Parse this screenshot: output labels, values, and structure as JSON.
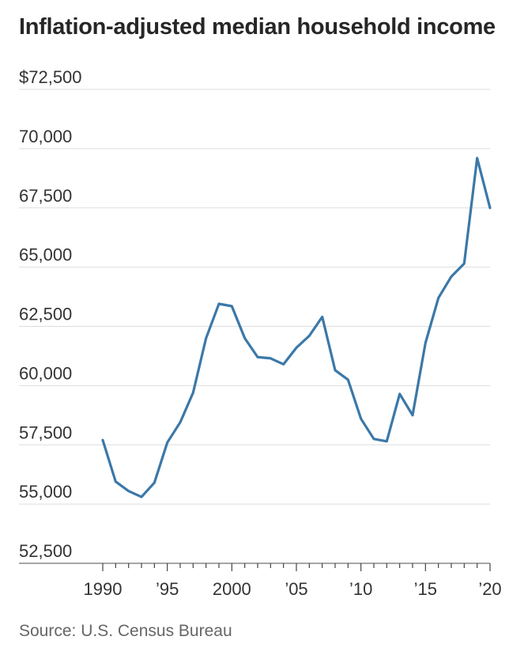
{
  "chart_data": {
    "type": "line",
    "title": "Inflation-adjusted median household income",
    "xlabel": "",
    "ylabel": "",
    "source": "Source: U.S. Census Bureau",
    "xlim": [
      1990,
      2020
    ],
    "ylim": [
      52500,
      72500
    ],
    "yticks": [
      {
        "value": 72500,
        "label": "$72,500"
      },
      {
        "value": 70000,
        "label": "70,000"
      },
      {
        "value": 67500,
        "label": "67,500"
      },
      {
        "value": 65000,
        "label": "65,000"
      },
      {
        "value": 62500,
        "label": "62,500"
      },
      {
        "value": 60000,
        "label": "60,000"
      },
      {
        "value": 57500,
        "label": "57,500"
      },
      {
        "value": 55000,
        "label": "55,000"
      },
      {
        "value": 52500,
        "label": "52,500"
      }
    ],
    "xticks": [
      {
        "value": 1990,
        "label": "1990"
      },
      {
        "value": 1995,
        "label": "’95"
      },
      {
        "value": 2000,
        "label": "2000"
      },
      {
        "value": 2005,
        "label": "’05"
      },
      {
        "value": 2010,
        "label": "’10"
      },
      {
        "value": 2015,
        "label": "’15"
      },
      {
        "value": 2020,
        "label": "’20"
      }
    ],
    "grid": true,
    "line_color": "#3b78a8",
    "series": [
      {
        "x": [
          1990,
          1991,
          1992,
          1993,
          1994,
          1995,
          1996,
          1997,
          1998,
          1999,
          2000,
          2001,
          2002,
          2003,
          2004,
          2005,
          2006,
          2007,
          2008,
          2009,
          2010,
          2011,
          2012,
          2013,
          2014,
          2015,
          2016,
          2017,
          2018,
          2019,
          2020
        ],
        "values": [
          57700,
          55950,
          55550,
          55300,
          55900,
          57600,
          58450,
          59700,
          62000,
          63450,
          63350,
          62000,
          61200,
          61150,
          60900,
          61600,
          62100,
          62900,
          60650,
          60250,
          58600,
          57750,
          57650,
          59650,
          58750,
          61800,
          63700,
          64600,
          65150,
          69600,
          67500
        ]
      }
    ]
  }
}
